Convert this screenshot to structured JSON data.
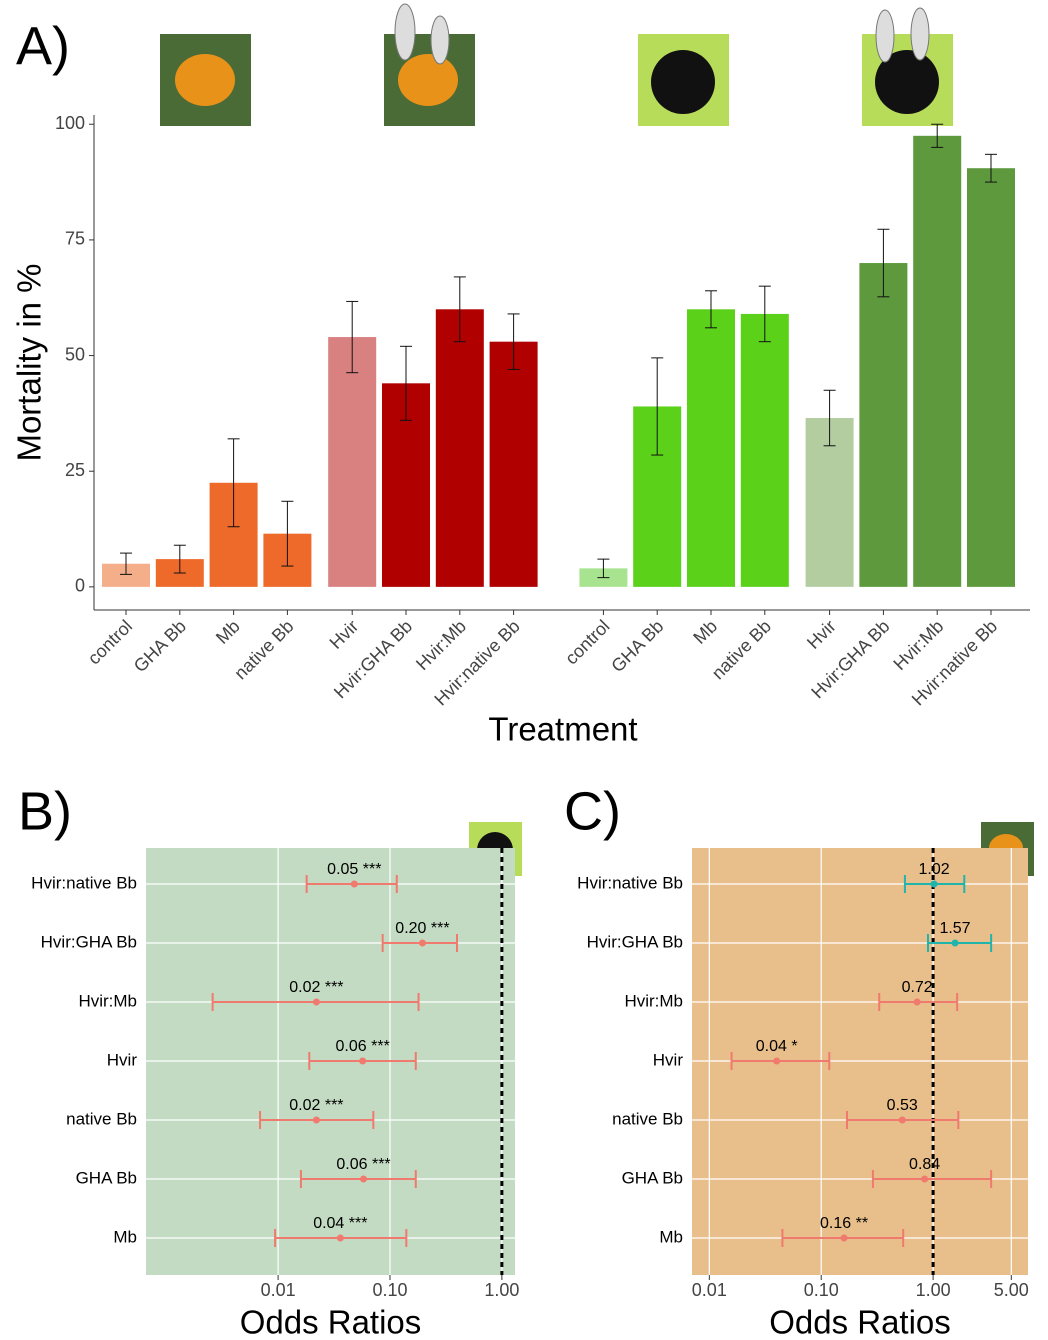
{
  "chart_data": [
    {
      "type": "bar",
      "panel_label": "A)",
      "x_label": "Treatment",
      "y_label": "Mortality in %",
      "categories": [
        "control",
        "GHA Bb",
        "Mb",
        "native Bb",
        "Hvir",
        "Hvir:GHA Bb",
        "Hvir:Mb",
        "Hvir:native Bb",
        "control",
        "GHA Bb",
        "Mb",
        "native Bb",
        "Hvir",
        "Hvir:GHA Bb",
        "Hvir:Mb",
        "Hvir:native Bb"
      ],
      "values": [
        5,
        6,
        22.5,
        11.5,
        54,
        44,
        60,
        53,
        4,
        39,
        60,
        59,
        36.5,
        70,
        97.5,
        90.5
      ],
      "errors": [
        2.3,
        3,
        9.5,
        7,
        7.7,
        8,
        7,
        6,
        2,
        10.5,
        4,
        6,
        6,
        7.3,
        2.5,
        3
      ],
      "colors": [
        "#f4ae8a",
        "#ee6a2a",
        "#ee6a2a",
        "#ee6a2a",
        "#d98080",
        "#b00000",
        "#b00000",
        "#b00000",
        "#a8e390",
        "#5bd11a",
        "#5bd11a",
        "#5bd11a",
        "#b3cda0",
        "#5e9a3d",
        "#5e9a3d",
        "#5e9a3d"
      ],
      "ylim": [
        -5,
        102
      ],
      "yticks": [
        0,
        25,
        50,
        75,
        100
      ],
      "grid": false
    },
    {
      "type": "errorbar",
      "panel_label": "B)",
      "x_label": "Odds Ratios",
      "categories": [
        "Hvir:native Bb",
        "Hvir:GHA Bb",
        "Hvir:Mb",
        "Hvir",
        "native Bb",
        "GHA Bb",
        "Mb"
      ],
      "values": [
        0.048,
        0.195,
        0.022,
        0.057,
        0.022,
        0.058,
        0.036
      ],
      "value_labels": [
        "0.05 ***",
        "0.20 ***",
        "0.02 ***",
        "0.06 ***",
        "0.02 ***",
        "0.06 ***",
        "0.04 ***"
      ],
      "lower": [
        0.018,
        0.086,
        0.0026,
        0.019,
        0.0069,
        0.016,
        0.0094
      ],
      "upper": [
        0.115,
        0.397,
        0.18,
        0.17,
        0.071,
        0.17,
        0.14
      ],
      "colors": [
        "#f07a6e",
        "#f07a6e",
        "#f07a6e",
        "#f07a6e",
        "#f07a6e",
        "#f07a6e",
        "#f07a6e"
      ],
      "xlim": [
        0.00066,
        1.31
      ],
      "xticks": [
        0.01,
        {
          "value": 0.1,
          "label": "0.10"
        },
        {
          "value": 1,
          "label": "1.00"
        }
      ],
      "log_x": true,
      "reference_line": 1,
      "background": "#c3dbc3",
      "grid": true
    },
    {
      "type": "errorbar",
      "panel_label": "C)",
      "x_label": "Odds Ratios",
      "categories": [
        "Hvir:native Bb",
        "Hvir:GHA Bb",
        "Hvir:Mb",
        "Hvir",
        "native Bb",
        "GHA Bb",
        "Mb"
      ],
      "values": [
        1.02,
        1.57,
        0.72,
        0.04,
        0.53,
        0.84,
        0.16
      ],
      "value_labels": [
        "1.02",
        "1.57",
        "0.72",
        "0.04 *",
        "0.53",
        "0.84",
        "0.16 **"
      ],
      "lower": [
        0.56,
        0.9,
        0.33,
        0.0158,
        0.17,
        0.29,
        0.045
      ],
      "upper": [
        1.9,
        3.3,
        1.64,
        0.118,
        1.68,
        3.3,
        0.54
      ],
      "colors": [
        "#1fb5ac",
        "#1fb5ac",
        "#f07a6e",
        "#f07a6e",
        "#f07a6e",
        "#f07a6e",
        "#f07a6e"
      ],
      "xlim": [
        0.007,
        7.05
      ],
      "xticks": [
        0.01,
        {
          "value": 0.1,
          "label": "0.10"
        },
        {
          "value": 1,
          "label": "1.00"
        },
        {
          "value": 5,
          "label": "5.00"
        }
      ],
      "log_x": true,
      "reference_line": 1,
      "background": "#e8be8a",
      "grid": true
    }
  ]
}
